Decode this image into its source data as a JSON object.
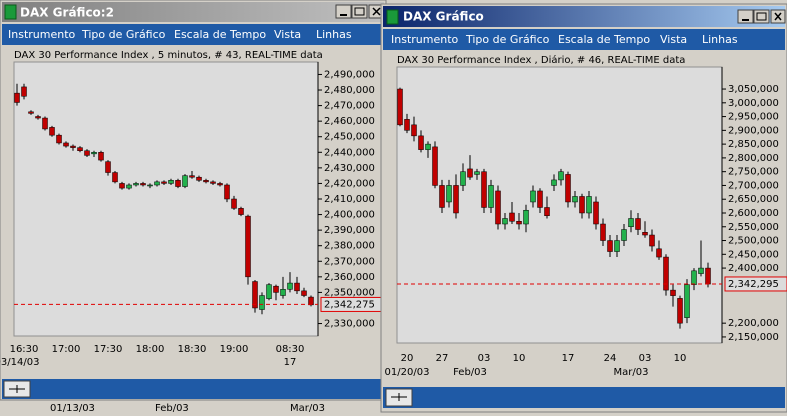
{
  "windows": [
    {
      "title": "DAX Gráfico:2",
      "menu": [
        "Instrumento",
        "Tipo de Gráfico",
        "Escala de Tempo",
        "Vista",
        "Linhas"
      ],
      "chart_data": {
        "type": "candlestick",
        "title": "DAX 30 Performance Index , 5 minutos, # 43, REAL-TIME data",
        "categories": [
          null,
          "16:30",
          null,
          null,
          null,
          null,
          null,
          "17:00",
          null,
          null,
          null,
          null,
          null,
          "17:30",
          null,
          null,
          null,
          null,
          null,
          "18:00",
          null,
          null,
          null,
          null,
          null,
          "18:30",
          null,
          null,
          null,
          null,
          null,
          "19:00",
          null,
          null,
          null,
          null,
          null,
          null,
          null,
          "08:30",
          null,
          null,
          null
        ],
        "categories2": [
          "03/14/03",
          null,
          null,
          null,
          null,
          null,
          null,
          null,
          null,
          null,
          null,
          null,
          null,
          null,
          null,
          null,
          null,
          null,
          null,
          null,
          null,
          null,
          null,
          null,
          null,
          null,
          null,
          null,
          null,
          null,
          null,
          null,
          null,
          null,
          null,
          null,
          null,
          null,
          null,
          "17",
          null,
          null,
          null
        ],
        "open": [
          2478000,
          2482000,
          2466000,
          2463000,
          2462000,
          2456000,
          2451000,
          2446000,
          2444000,
          2443000,
          2441000,
          2439000,
          2440000,
          2434000,
          2427000,
          2420000,
          2417000,
          2419000,
          2420000,
          2419000,
          2419000,
          2421000,
          2420000,
          2422000,
          2418000,
          2425000,
          2424000,
          2422000,
          2421000,
          2420000,
          2419000,
          2410000,
          2404000,
          2399000,
          2357000,
          2339000,
          2346000,
          2354000,
          2348000,
          2352000,
          2356000,
          2351000,
          2347000
        ],
        "high": [
          2484000,
          2484000,
          2467000,
          2464000,
          2463000,
          2457000,
          2452000,
          2447000,
          2445000,
          2444000,
          2442000,
          2441000,
          2441000,
          2435000,
          2428000,
          2421000,
          2420000,
          2421000,
          2421000,
          2420000,
          2422000,
          2422000,
          2423000,
          2423000,
          2426000,
          2428000,
          2425000,
          2423000,
          2422000,
          2421000,
          2420000,
          2412000,
          2405000,
          2400000,
          2358000,
          2350000,
          2356000,
          2355000,
          2360000,
          2363000,
          2360000,
          2353000,
          2348000
        ],
        "low": [
          2470000,
          2474000,
          2464000,
          2461000,
          2454000,
          2450000,
          2445000,
          2443000,
          2441000,
          2440000,
          2437000,
          2437000,
          2434000,
          2425000,
          2420000,
          2416000,
          2416000,
          2418000,
          2418000,
          2417000,
          2418000,
          2419000,
          2419000,
          2417000,
          2417000,
          2423000,
          2421000,
          2420000,
          2419000,
          2418000,
          2408000,
          2403000,
          2399000,
          2355000,
          2337000,
          2336000,
          2345000,
          2345000,
          2346000,
          2350000,
          2349000,
          2347000,
          2341000
        ],
        "close": [
          2472000,
          2476000,
          2465000,
          2462000,
          2455000,
          2451000,
          2446000,
          2444000,
          2443000,
          2441000,
          2438000,
          2440000,
          2435000,
          2427000,
          2421000,
          2417000,
          2419000,
          2420000,
          2419000,
          2419000,
          2421000,
          2420000,
          2422000,
          2418000,
          2425000,
          2424000,
          2422000,
          2421000,
          2420000,
          2419000,
          2410000,
          2404000,
          2400000,
          2360000,
          2340000,
          2348000,
          2355000,
          2350000,
          2352000,
          2356000,
          2351000,
          2348000,
          2342000
        ],
        "up_color": "#22b14c",
        "down_color": "#c00000",
        "ylim": [
          2322000,
          2498000
        ],
        "yticks": [
          {
            "value": 2490000,
            "label": "2,490,000"
          },
          {
            "value": 2480000,
            "label": "2,480,000"
          },
          {
            "value": 2470000,
            "label": "2,470,000"
          },
          {
            "value": 2460000,
            "label": "2,460,000"
          },
          {
            "value": 2450000,
            "label": "2,450,000"
          },
          {
            "value": 2440000,
            "label": "2,440,000"
          },
          {
            "value": 2430000,
            "label": "2,430,000"
          },
          {
            "value": 2420000,
            "label": "2,420,000"
          },
          {
            "value": 2410000,
            "label": "2,410,000"
          },
          {
            "value": 2400000,
            "label": "2,400,000"
          },
          {
            "value": 2390000,
            "label": "2,390,000"
          },
          {
            "value": 2380000,
            "label": "2,380,000"
          },
          {
            "value": 2370000,
            "label": "2,370,000"
          },
          {
            "value": 2360000,
            "label": "2,360,000"
          },
          {
            "value": 2350000,
            "label": "2,350,000"
          },
          {
            "value": 2330000,
            "label": "2,330,000"
          }
        ],
        "current": {
          "value": 2342275,
          "label": "2,342,275"
        },
        "current_color": "#e00000",
        "grid": false
      }
    },
    {
      "title": "DAX Gráfico",
      "menu": [
        "Instrumento",
        "Tipo de Gráfico",
        "Escala de Tempo",
        "Vista",
        "Linhas"
      ],
      "chart_data": {
        "type": "candlestick",
        "title": "DAX 30 Performance Index , Diário, # 46, REAL-TIME data",
        "categories": [
          null,
          "20",
          null,
          null,
          null,
          null,
          "27",
          null,
          null,
          null,
          null,
          null,
          "03",
          null,
          null,
          null,
          null,
          "10",
          null,
          null,
          null,
          null,
          null,
          null,
          "17",
          null,
          null,
          null,
          null,
          null,
          "24",
          null,
          null,
          null,
          null,
          "03",
          null,
          null,
          null,
          null,
          "10",
          null,
          null,
          null,
          null
        ],
        "categories2": [
          null,
          "01/20/03",
          null,
          null,
          null,
          null,
          null,
          null,
          null,
          null,
          "Feb/03",
          null,
          null,
          null,
          null,
          null,
          null,
          null,
          null,
          null,
          null,
          null,
          null,
          null,
          null,
          null,
          null,
          null,
          null,
          null,
          null,
          null,
          null,
          "Mar/03",
          null,
          null,
          null,
          null,
          null,
          null,
          null,
          null,
          null,
          null,
          null
        ],
        "open": [
          3050000,
          2940000,
          2920000,
          2880000,
          2830000,
          2840000,
          2700000,
          2640000,
          2700000,
          2700000,
          2760000,
          2740000,
          2750000,
          2620000,
          2680000,
          2560000,
          2600000,
          2570000,
          2560000,
          2640000,
          2680000,
          2620000,
          2700000,
          2720000,
          2740000,
          2640000,
          2660000,
          2600000,
          2640000,
          2560000,
          2500000,
          2460000,
          2500000,
          2550000,
          2580000,
          2530000,
          2520000,
          2470000,
          2440000,
          2320000,
          2290000,
          2220000,
          2340000,
          2380000,
          2400000
        ],
        "high": [
          3055000,
          2960000,
          2950000,
          2900000,
          2860000,
          2860000,
          2720000,
          2720000,
          2740000,
          2780000,
          2810000,
          2760000,
          2760000,
          2720000,
          2700000,
          2600000,
          2640000,
          2600000,
          2630000,
          2700000,
          2690000,
          2660000,
          2740000,
          2760000,
          2750000,
          2680000,
          2670000,
          2680000,
          2660000,
          2580000,
          2520000,
          2520000,
          2560000,
          2610000,
          2600000,
          2570000,
          2540000,
          2500000,
          2450000,
          2340000,
          2300000,
          2360000,
          2400000,
          2500000,
          2420000
        ],
        "low": [
          2915000,
          2890000,
          2860000,
          2820000,
          2800000,
          2690000,
          2600000,
          2620000,
          2580000,
          2680000,
          2720000,
          2720000,
          2600000,
          2600000,
          2540000,
          2540000,
          2560000,
          2540000,
          2530000,
          2620000,
          2600000,
          2580000,
          2680000,
          2700000,
          2620000,
          2620000,
          2580000,
          2580000,
          2540000,
          2480000,
          2440000,
          2440000,
          2480000,
          2530000,
          2520000,
          2510000,
          2460000,
          2430000,
          2300000,
          2260000,
          2180000,
          2200000,
          2320000,
          2370000,
          2330000
        ],
        "close": [
          2920000,
          2900000,
          2880000,
          2830000,
          2850000,
          2700000,
          2620000,
          2700000,
          2600000,
          2750000,
          2730000,
          2750000,
          2620000,
          2700000,
          2560000,
          2580000,
          2570000,
          2560000,
          2610000,
          2680000,
          2620000,
          2590000,
          2720000,
          2750000,
          2640000,
          2660000,
          2600000,
          2660000,
          2560000,
          2500000,
          2460000,
          2500000,
          2540000,
          2580000,
          2540000,
          2520000,
          2480000,
          2440000,
          2320000,
          2300000,
          2200000,
          2340000,
          2390000,
          2400000,
          2342000
        ],
        "up_color": "#22b14c",
        "down_color": "#c00000",
        "ylim": [
          2128000,
          3130000
        ],
        "yticks": [
          {
            "value": 3050000,
            "label": "3,050,000"
          },
          {
            "value": 3000000,
            "label": "3,000,000"
          },
          {
            "value": 2950000,
            "label": "2,950,000"
          },
          {
            "value": 2900000,
            "label": "2,900,000"
          },
          {
            "value": 2850000,
            "label": "2,850,000"
          },
          {
            "value": 2800000,
            "label": "2,800,000"
          },
          {
            "value": 2750000,
            "label": "2,750,000"
          },
          {
            "value": 2700000,
            "label": "2,700,000"
          },
          {
            "value": 2650000,
            "label": "2,650,000"
          },
          {
            "value": 2600000,
            "label": "2,600,000"
          },
          {
            "value": 2550000,
            "label": "2,550,000"
          },
          {
            "value": 2500000,
            "label": "2,500,000"
          },
          {
            "value": 2450000,
            "label": "2,450,000"
          },
          {
            "value": 2400000,
            "label": "2,400,000"
          },
          {
            "value": 2200000,
            "label": "2,200,000"
          },
          {
            "value": 2150000,
            "label": "2,150,000"
          }
        ],
        "current": {
          "value": 2342295,
          "label": "2,342,295"
        },
        "current_color": "#e00000",
        "grid": false
      }
    }
  ],
  "background_labels": [
    "01/13/03",
    "Feb/03",
    "Mar/03"
  ]
}
